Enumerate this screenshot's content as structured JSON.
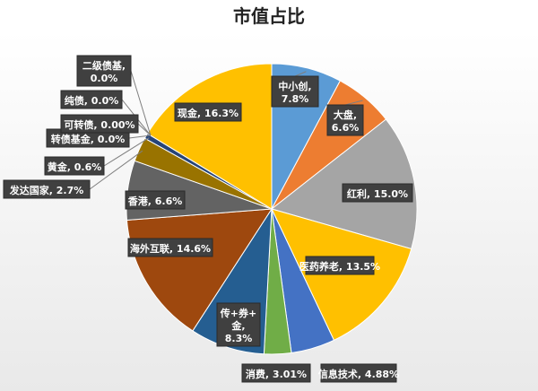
{
  "chart_data": {
    "type": "pie",
    "title": "市值占比",
    "slices": [
      {
        "name": "中小创",
        "pct_label": "7.8%",
        "value": 7.8,
        "color": "#5b9bd5"
      },
      {
        "name": "大盘",
        "pct_label": "6.6%",
        "value": 6.6,
        "color": "#ed7d31"
      },
      {
        "name": "红利",
        "pct_label": "15.0%",
        "value": 15.0,
        "color": "#a5a5a5"
      },
      {
        "name": "医药养老",
        "pct_label": "13.5%",
        "value": 13.5,
        "color": "#ffc000"
      },
      {
        "name": "信息技术",
        "pct_label": "4.88%",
        "value": 4.88,
        "color": "#4472c4"
      },
      {
        "name": "消费",
        "pct_label": "3.01%",
        "value": 3.01,
        "color": "#70ad47"
      },
      {
        "name": "传+券+金",
        "pct_label": "8.3%",
        "value": 8.3,
        "color": "#255e91"
      },
      {
        "name": "海外互联",
        "pct_label": "14.6%",
        "value": 14.6,
        "color": "#9e480e"
      },
      {
        "name": "香港",
        "pct_label": "6.6%",
        "value": 6.6,
        "color": "#636363"
      },
      {
        "name": "发达国家",
        "pct_label": "2.7%",
        "value": 2.7,
        "color": "#997300"
      },
      {
        "name": "黄金",
        "pct_label": "0.6%",
        "value": 0.6,
        "color": "#264478"
      },
      {
        "name": "转债基金",
        "pct_label": "0.0%",
        "value": 0.0,
        "color": "#43682b"
      },
      {
        "name": "可转债",
        "pct_label": "0.00%",
        "value": 0.0,
        "color": "#698ed0"
      },
      {
        "name": "纯债",
        "pct_label": "0.0%",
        "value": 0.0,
        "color": "#f1975a"
      },
      {
        "name": "二级债基",
        "pct_label": "0.0%",
        "value": 0.0,
        "color": "#b7b7b7"
      },
      {
        "name": "现金",
        "pct_label": "16.3%",
        "value": 16.3,
        "color": "#ffc000"
      }
    ],
    "label_format": "{name}, {pct}"
  }
}
